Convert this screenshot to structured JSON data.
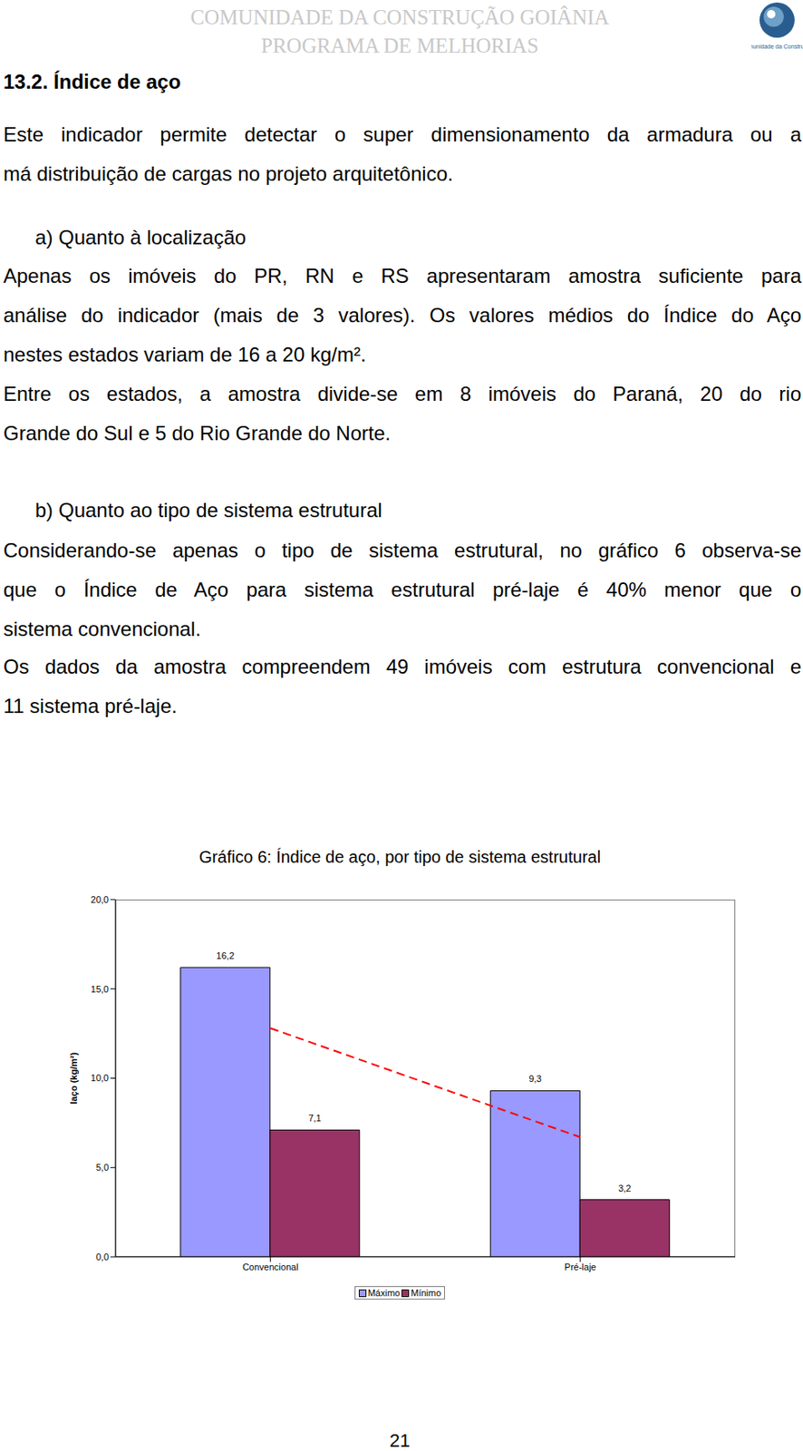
{
  "header": {
    "lines": [
      "COMUNIDADE DA CONSTRUÇÃO GOIÂNIA",
      "PROGRAMA DE MELHORIAS"
    ],
    "logo_text": "Comunidade da Construção"
  },
  "section_title": "13.2. Índice de aço",
  "blocks": [
    {
      "type": "paragraph",
      "lines": [
        "Este indicador permite detectar o super dimensionamento da armadura ou a",
        "má distribuição de cargas no projeto arquitetônico."
      ]
    },
    {
      "type": "subheading",
      "lines": [
        "a) Quanto à localização"
      ]
    },
    {
      "type": "paragraph",
      "lines": [
        "Apenas os imóveis do PR, RN e RS apresentaram amostra suficiente para",
        "análise do indicador (mais de 3 valores). Os valores médios do Índice do Aço",
        "nestes estados variam de 16 a 20 kg/m²."
      ]
    },
    {
      "type": "paragraph",
      "lines": [
        "Entre os estados, a amostra divide-se em 8 imóveis do Paraná, 20 do rio",
        "Grande do Sul e 5 do Rio Grande do Norte."
      ]
    },
    {
      "type": "subheading",
      "lines": [
        "b) Quanto ao tipo de sistema estrutural"
      ]
    },
    {
      "type": "paragraph",
      "lines": [
        "Considerando-se apenas o tipo de sistema estrutural, no gráfico 6 observa-se",
        "que o Índice de Aço para sistema estrutural pré-laje é 40% menor que o",
        "sistema convencional."
      ]
    },
    {
      "type": "paragraph",
      "lines": [
        "Os dados da amostra compreendem 49 imóveis com estrutura convencional e",
        "11 sistema pré-laje."
      ]
    }
  ],
  "chart_data": {
    "type": "bar",
    "title": "Gráfico 6: Índice de aço, por tipo de sistema estrutural",
    "y_label": "Iaço (kg/m²)",
    "categories": [
      "Convencional",
      "Pré-laje"
    ],
    "series": [
      {
        "name": "Máximo",
        "color": "#9999ff",
        "values": [
          16.2,
          9.3
        ],
        "value_labels": [
          "16,2",
          "9,3"
        ]
      },
      {
        "name": "Mínimo",
        "color": "#993366",
        "values": [
          7.1,
          3.2
        ],
        "value_labels": [
          "7,1",
          "3,2"
        ]
      },
      {
        "type": "line",
        "color": "#ff0000",
        "line_style": "dashed",
        "values": [
          12.8,
          6.7
        ]
      }
    ],
    "ylim": [
      0,
      20
    ],
    "yticks": [
      {
        "value": 0,
        "label": "0,0"
      },
      {
        "value": 5,
        "label": "5,0"
      },
      {
        "value": 10,
        "label": "10,0"
      },
      {
        "value": 15,
        "label": "15,0"
      },
      {
        "value": 20,
        "label": "20,0"
      }
    ],
    "grid": false,
    "data_labels": true,
    "legend": "bottom"
  },
  "page_number": "21"
}
